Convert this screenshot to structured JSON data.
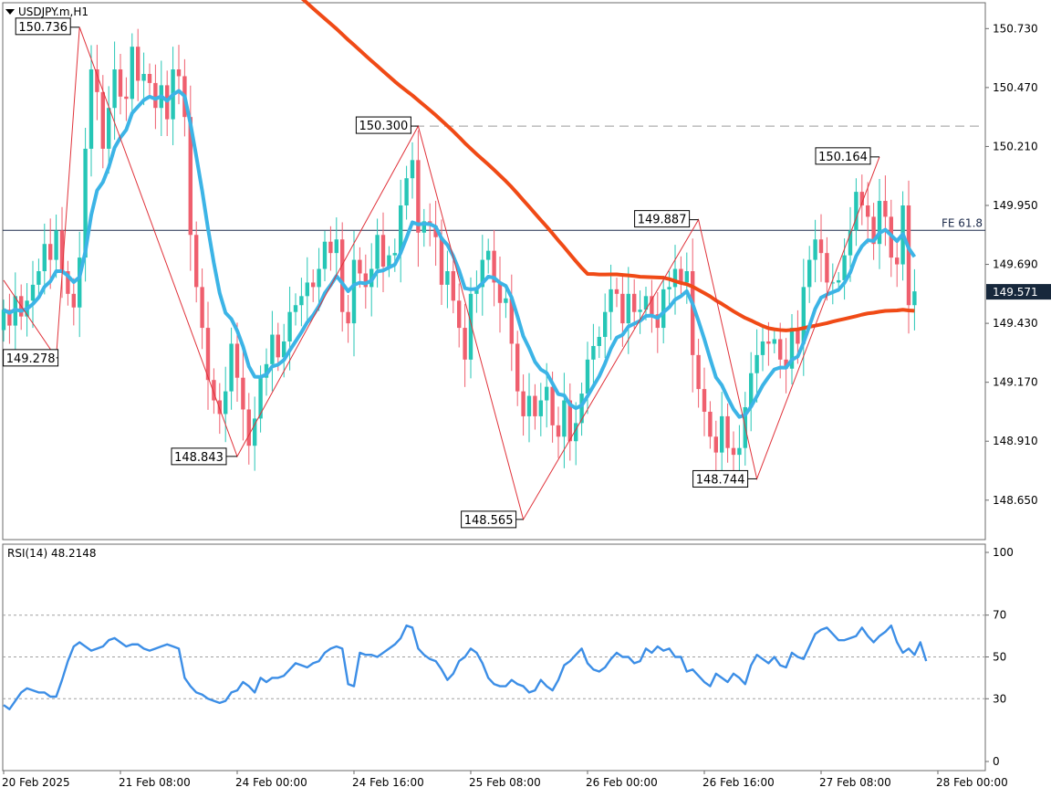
{
  "chart_data": [
    {
      "type": "candlestick",
      "title": "USDJPY.m,H1",
      "symbol": "USDJPY.m",
      "timeframe": "H1",
      "ylim": [
        148.48,
        150.84
      ],
      "y_ticks": [
        "150.730",
        "150.470",
        "150.210",
        "149.950",
        "149.690",
        "149.430",
        "149.170",
        "148.910",
        "148.650"
      ],
      "x_ticks": [
        "20 Feb 2025",
        "21 Feb 08:00",
        "24 Feb 00:00",
        "24 Feb 16:00",
        "25 Feb 08:00",
        "26 Feb 00:00",
        "26 Feb 16:00",
        "27 Feb 08:00",
        "28 Feb 00:00"
      ],
      "current_price": "149.571",
      "fe_label": "FE 61.8",
      "fe_level": 149.84,
      "dashed_level": 150.3,
      "colors": {
        "bull": "#26c6b6",
        "bear": "#ef5f6e",
        "ma_fast": "#3cb4e6",
        "ma_slow": "#f04a16",
        "zigzag": "#e0323a",
        "rsi": "#3c8ee6",
        "price_tag": "#17283c"
      },
      "zigzag_labels": [
        {
          "label": "150.736",
          "x": "20 Feb 2025 20:00",
          "y": 150.736
        },
        {
          "label": "149.278",
          "x": "20 Feb 2025 14:00",
          "y": 149.278
        },
        {
          "label": "148.843",
          "x": "24 Feb 01:00",
          "y": 148.843
        },
        {
          "label": "150.300",
          "x": "24 Feb 18:00",
          "y": 150.3
        },
        {
          "label": "148.565",
          "x": "25 Feb 09:00",
          "y": 148.565
        },
        {
          "label": "149.887",
          "x": "26 Feb 12:00",
          "y": 149.887
        },
        {
          "label": "148.744",
          "x": "26 Feb 23:00",
          "y": 148.744
        },
        {
          "label": "150.164",
          "x": "27 Feb 15:00",
          "y": 150.164
        }
      ],
      "candles_open": [
        149.4,
        149.49,
        149.42,
        149.55,
        149.46,
        149.53,
        149.6,
        149.66,
        149.78,
        149.71,
        149.84,
        149.66,
        149.56,
        149.5,
        149.72,
        150.2,
        150.55,
        150.45,
        150.2,
        150.38,
        150.55,
        150.43,
        150.42,
        150.65,
        150.5,
        150.53,
        150.49,
        150.38,
        150.48,
        150.33,
        150.55,
        150.52,
        150.34,
        149.82,
        149.59,
        149.41,
        149.18,
        149.09,
        149.03,
        149.13,
        149.34,
        149.19,
        149.05,
        148.89,
        149.01,
        149.19,
        149.25,
        149.38,
        149.28,
        149.35,
        149.48,
        149.51,
        149.55,
        149.61,
        149.59,
        149.67,
        149.79,
        149.74,
        149.8,
        149.48,
        149.43,
        149.71,
        149.65,
        149.59,
        149.67,
        149.82,
        149.68,
        149.73,
        149.74,
        149.95,
        150.07,
        150.15,
        149.83,
        149.88,
        149.86,
        149.81,
        149.6,
        149.66,
        149.53,
        149.41,
        149.27,
        149.56,
        149.59,
        149.71,
        149.75,
        149.61,
        149.52,
        149.54,
        149.34,
        149.13,
        149.02,
        149.11,
        149.02,
        149.09,
        149.15,
        148.98,
        148.93,
        149.09,
        148.91,
        148.99,
        149.12,
        149.27,
        149.33,
        149.37,
        149.48,
        149.58,
        149.56,
        149.43,
        149.56,
        149.48,
        149.49,
        149.55,
        149.47,
        149.41,
        149.58,
        149.59,
        149.67,
        149.61,
        149.66,
        149.29,
        149.14,
        149.04,
        148.93,
        148.86,
        149.02,
        148.88,
        148.85,
        148.88,
        149.06,
        149.21,
        149.29,
        149.35,
        149.34,
        149.36,
        149.27,
        149.23,
        149.41,
        149.34,
        149.59,
        149.71,
        149.8,
        149.74,
        149.61,
        149.61,
        149.62,
        149.73,
        149.84,
        150.01,
        149.95,
        149.9,
        149.78,
        149.97,
        149.9,
        149.72,
        149.69,
        149.95,
        149.51
      ],
      "candles_close": [
        149.49,
        149.42,
        149.55,
        149.46,
        149.53,
        149.6,
        149.66,
        149.78,
        149.71,
        149.84,
        149.66,
        149.56,
        149.5,
        149.72,
        150.2,
        150.55,
        150.45,
        150.2,
        150.38,
        150.55,
        150.43,
        150.42,
        150.65,
        150.5,
        150.53,
        150.49,
        150.38,
        150.48,
        150.33,
        150.55,
        150.52,
        150.34,
        149.82,
        149.59,
        149.41,
        149.18,
        149.09,
        149.03,
        149.13,
        149.34,
        149.19,
        149.05,
        148.89,
        149.01,
        149.19,
        149.25,
        149.38,
        149.28,
        149.35,
        149.48,
        149.51,
        149.55,
        149.61,
        149.59,
        149.67,
        149.79,
        149.74,
        149.8,
        149.48,
        149.43,
        149.71,
        149.65,
        149.59,
        149.67,
        149.82,
        149.68,
        149.73,
        149.74,
        149.95,
        150.07,
        150.15,
        149.83,
        149.88,
        149.86,
        149.81,
        149.6,
        149.66,
        149.53,
        149.41,
        149.27,
        149.56,
        149.59,
        149.71,
        149.75,
        149.61,
        149.52,
        149.54,
        149.34,
        149.13,
        149.02,
        149.11,
        149.02,
        149.09,
        149.15,
        148.98,
        148.93,
        149.09,
        148.91,
        148.99,
        149.12,
        149.27,
        149.33,
        149.37,
        149.48,
        149.58,
        149.56,
        149.43,
        149.56,
        149.48,
        149.49,
        149.55,
        149.47,
        149.41,
        149.58,
        149.59,
        149.67,
        149.61,
        149.66,
        149.29,
        149.14,
        149.04,
        148.93,
        148.86,
        149.02,
        148.88,
        148.85,
        148.88,
        149.06,
        149.21,
        149.29,
        149.35,
        149.34,
        149.36,
        149.27,
        149.23,
        149.41,
        149.34,
        149.59,
        149.71,
        149.8,
        149.74,
        149.61,
        149.61,
        149.62,
        149.73,
        149.84,
        150.01,
        149.95,
        149.9,
        149.78,
        149.97,
        149.9,
        149.72,
        149.69,
        149.95,
        149.51,
        149.571
      ]
    },
    {
      "type": "line",
      "title": "RSI(14) 48.2148",
      "ylim": [
        0,
        100
      ],
      "y_ticks": [
        "100",
        "70",
        "50",
        "30",
        "0"
      ],
      "levels": [
        70,
        50,
        30
      ],
      "series": [
        {
          "name": "RSI(14)",
          "values": [
            27,
            25,
            29,
            33,
            35,
            34,
            33,
            33,
            31,
            31,
            39,
            48,
            55,
            57,
            55,
            53,
            54,
            55,
            58,
            59,
            57,
            55,
            56,
            56,
            54,
            53,
            54,
            55,
            56,
            55,
            54,
            40,
            36,
            33,
            32,
            30,
            29,
            28,
            29,
            33,
            34,
            38,
            36,
            33,
            40,
            38,
            40,
            40,
            41,
            44,
            47,
            46,
            45,
            47,
            48,
            52,
            54,
            55,
            54,
            37,
            36,
            52,
            51,
            51,
            50,
            52,
            54,
            56,
            59,
            65,
            64,
            54,
            51,
            49,
            48,
            44,
            39,
            42,
            48,
            50,
            54,
            52,
            47,
            40,
            37,
            36,
            36,
            39,
            37,
            36,
            33,
            34,
            39,
            36,
            34,
            39,
            46,
            48,
            51,
            54,
            47,
            44,
            43,
            45,
            49,
            52,
            50,
            50,
            47,
            48,
            54,
            52,
            55,
            53,
            54,
            50,
            50,
            43,
            44,
            41,
            38,
            36,
            42,
            40,
            38,
            42,
            40,
            37,
            46,
            51,
            49,
            47,
            50,
            46,
            45,
            52,
            50,
            49,
            55,
            61,
            63,
            64,
            61,
            58,
            58,
            59,
            60,
            64,
            60,
            57,
            60,
            62,
            65,
            57,
            52,
            54,
            51,
            57,
            48
          ]
        }
      ]
    }
  ]
}
